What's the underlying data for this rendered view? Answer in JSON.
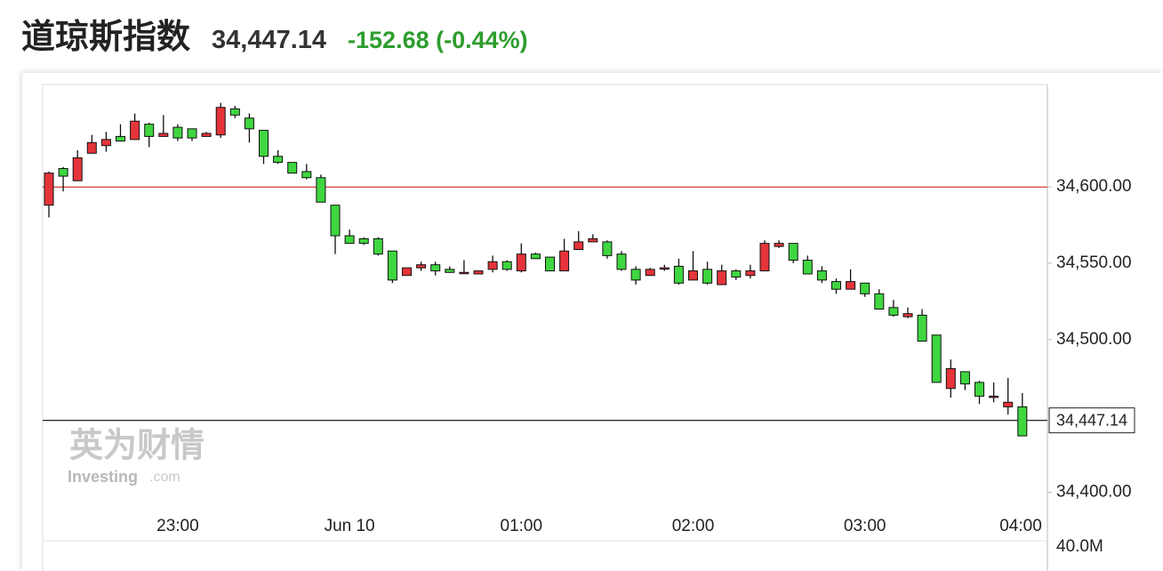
{
  "header": {
    "title": "道琼斯指数",
    "price": "34,447.14",
    "change": "-152.68 (-0.44%)"
  },
  "chart_data": {
    "type": "candlestick",
    "categories": [
      null,
      null,
      null,
      null,
      null,
      null,
      null,
      null,
      null,
      "23:00",
      null,
      null,
      null,
      null,
      null,
      null,
      null,
      null,
      null,
      null,
      null,
      "Jun 10",
      null,
      null,
      null,
      null,
      null,
      null,
      null,
      null,
      null,
      null,
      null,
      "01:00",
      null,
      null,
      null,
      null,
      null,
      null,
      null,
      null,
      null,
      null,
      null,
      "02:00",
      null,
      null,
      null,
      null,
      null,
      null,
      null,
      null,
      null,
      null,
      null,
      "03:00",
      null,
      null,
      null,
      null,
      null,
      null,
      null,
      null,
      null,
      null,
      null,
      "04:00"
    ],
    "open": [
      34588,
      34612,
      34604,
      34622,
      34627,
      34633,
      34631,
      34641,
      34633,
      34639,
      34638,
      34633,
      34634,
      34651,
      34645,
      34637,
      34620,
      34616,
      34610,
      34606,
      34588,
      34568,
      34566,
      34566,
      34558,
      34542,
      34547,
      34549,
      34546,
      34544,
      34543,
      34546,
      34551,
      34545,
      34556,
      34554,
      34545,
      34559,
      34564,
      34564,
      34556,
      34546,
      34542,
      34547,
      34548,
      34539,
      34546,
      34536,
      34545,
      34542,
      34545,
      34561,
      34563,
      34552,
      34545,
      34538,
      34533,
      34537,
      34530,
      34521,
      34515,
      34516,
      34503,
      34468,
      34479,
      34472,
      34463,
      34456,
      34456,
      null
    ],
    "high": [
      34610,
      34613,
      34624,
      34634,
      34636,
      34641,
      34648,
      34642,
      34647,
      34641,
      34638,
      34636,
      34655,
      34653,
      34648,
      34637,
      34624,
      34616,
      34615,
      34608,
      34588,
      34572,
      34567,
      34567,
      34558,
      34547,
      34551,
      34551,
      34548,
      34552,
      34545,
      34555,
      34552,
      34563,
      34557,
      34554,
      34566,
      34571,
      34569,
      34565,
      34558,
      34548,
      34547,
      34549,
      34553,
      34558,
      34551,
      34549,
      34546,
      34549,
      34565,
      34565,
      34563,
      34555,
      34548,
      34540,
      34546,
      34537,
      34533,
      34526,
      34521,
      34520,
      34503,
      34487,
      34479,
      34473,
      34472,
      34475,
      34465,
      null
    ],
    "low": [
      34580,
      34597,
      34604,
      34622,
      34623,
      34630,
      34631,
      34626,
      34633,
      34630,
      34630,
      34633,
      34632,
      34645,
      34629,
      34615,
      34615,
      34609,
      34605,
      34590,
      34556,
      34563,
      34562,
      34555,
      34537,
      34542,
      34545,
      34542,
      34544,
      34543,
      34543,
      34544,
      34545,
      34544,
      34553,
      34545,
      34545,
      34559,
      34564,
      34553,
      34545,
      34536,
      34542,
      34545,
      34536,
      34539,
      34536,
      34536,
      34539,
      34540,
      34545,
      34560,
      34550,
      34543,
      34537,
      34530,
      34533,
      34528,
      34520,
      34515,
      34514,
      34499,
      34472,
      34462,
      34467,
      34458,
      34459,
      34451,
      34437,
      null
    ],
    "close": [
      34609,
      34607,
      34619,
      34629,
      34631,
      34630,
      34643,
      34633,
      34635,
      34632,
      34632,
      34635,
      34652,
      34647,
      34638,
      34620,
      34616,
      34609,
      34606,
      34590,
      34568,
      34563,
      34563,
      34556,
      34539,
      34547,
      34549,
      34545,
      34544,
      34544,
      34545,
      34551,
      34546,
      34556,
      34553,
      34545,
      34558,
      34564,
      34566,
      34555,
      34546,
      34539,
      34546,
      34547,
      34537,
      34545,
      34537,
      34545,
      34541,
      34545,
      34563,
      34563,
      34552,
      34543,
      34539,
      34533,
      34538,
      34530,
      34520,
      34516,
      34517,
      34499,
      34472,
      34481,
      34471,
      34463,
      34463,
      34459,
      34437,
      null
    ],
    "up_color": "#e5343b",
    "down_color": "#3fd640",
    "prev_close": 34599.82,
    "prev_close_color": "#d9534f",
    "last": {
      "value": 34447.14,
      "label": "34,447.14"
    },
    "ylim": [
      34373,
      34667
    ],
    "yticks": [
      {
        "value": 34600,
        "label": "34,600.00"
      },
      {
        "value": 34550,
        "label": "34,550.00"
      },
      {
        "value": 34500,
        "label": "34,500.00"
      },
      {
        "value": 34400,
        "label": "34,400.00"
      }
    ],
    "volume_label": "40.0M",
    "watermark": {
      "brand_cn": "英为财情",
      "brand_en": "Investing",
      "domain": ".com"
    }
  }
}
